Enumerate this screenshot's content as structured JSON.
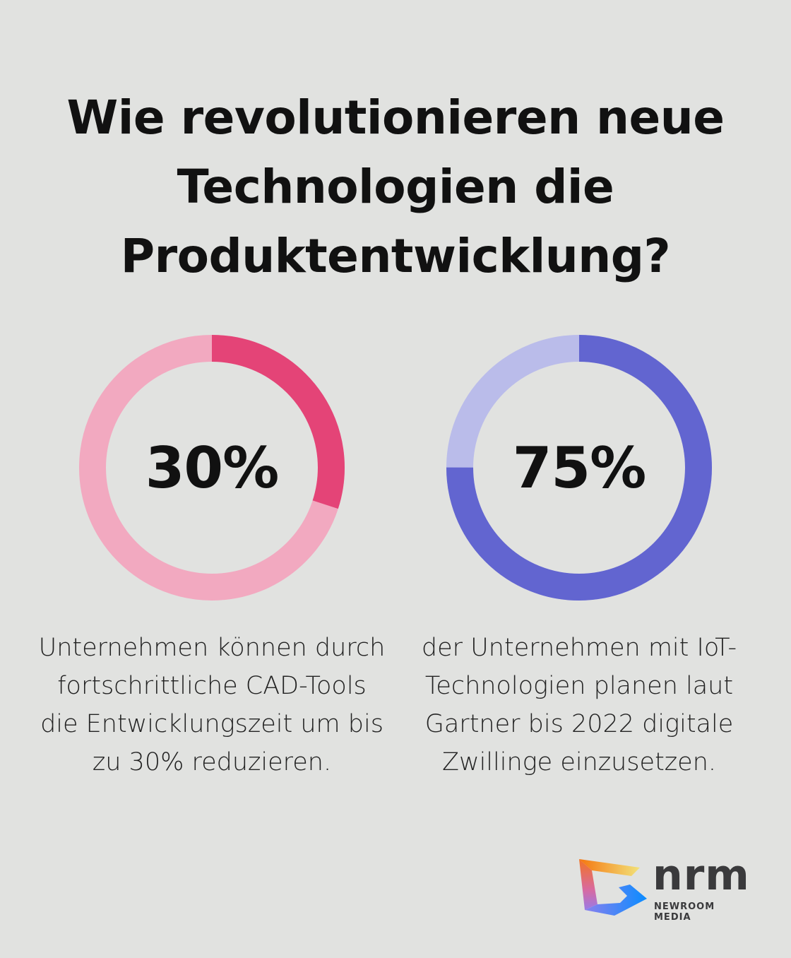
{
  "title": "Wie revolutionieren neue Technologien die Produktentwicklung?",
  "chart_data": [
    {
      "type": "pie",
      "variant": "donut",
      "value": 30,
      "label": "30%",
      "description": "Unternehmen können durch fortschrittliche CAD-Tools die Entwicklungszeit um bis zu 30% reduzieren.",
      "colors": {
        "value": "#e44477",
        "rest": "#f2a9c0"
      }
    },
    {
      "type": "pie",
      "variant": "donut",
      "value": 75,
      "label": "75%",
      "description": "der Unternehmen mit IoT-Technologien planen laut Gartner bis 2022 digitale Zwillinge einzusetzen.",
      "colors": {
        "value": "#6265d0",
        "rest": "#babcea"
      }
    }
  ],
  "logo": {
    "wordmark": "nrm",
    "subtitle": "NEWROOM MEDIA"
  }
}
